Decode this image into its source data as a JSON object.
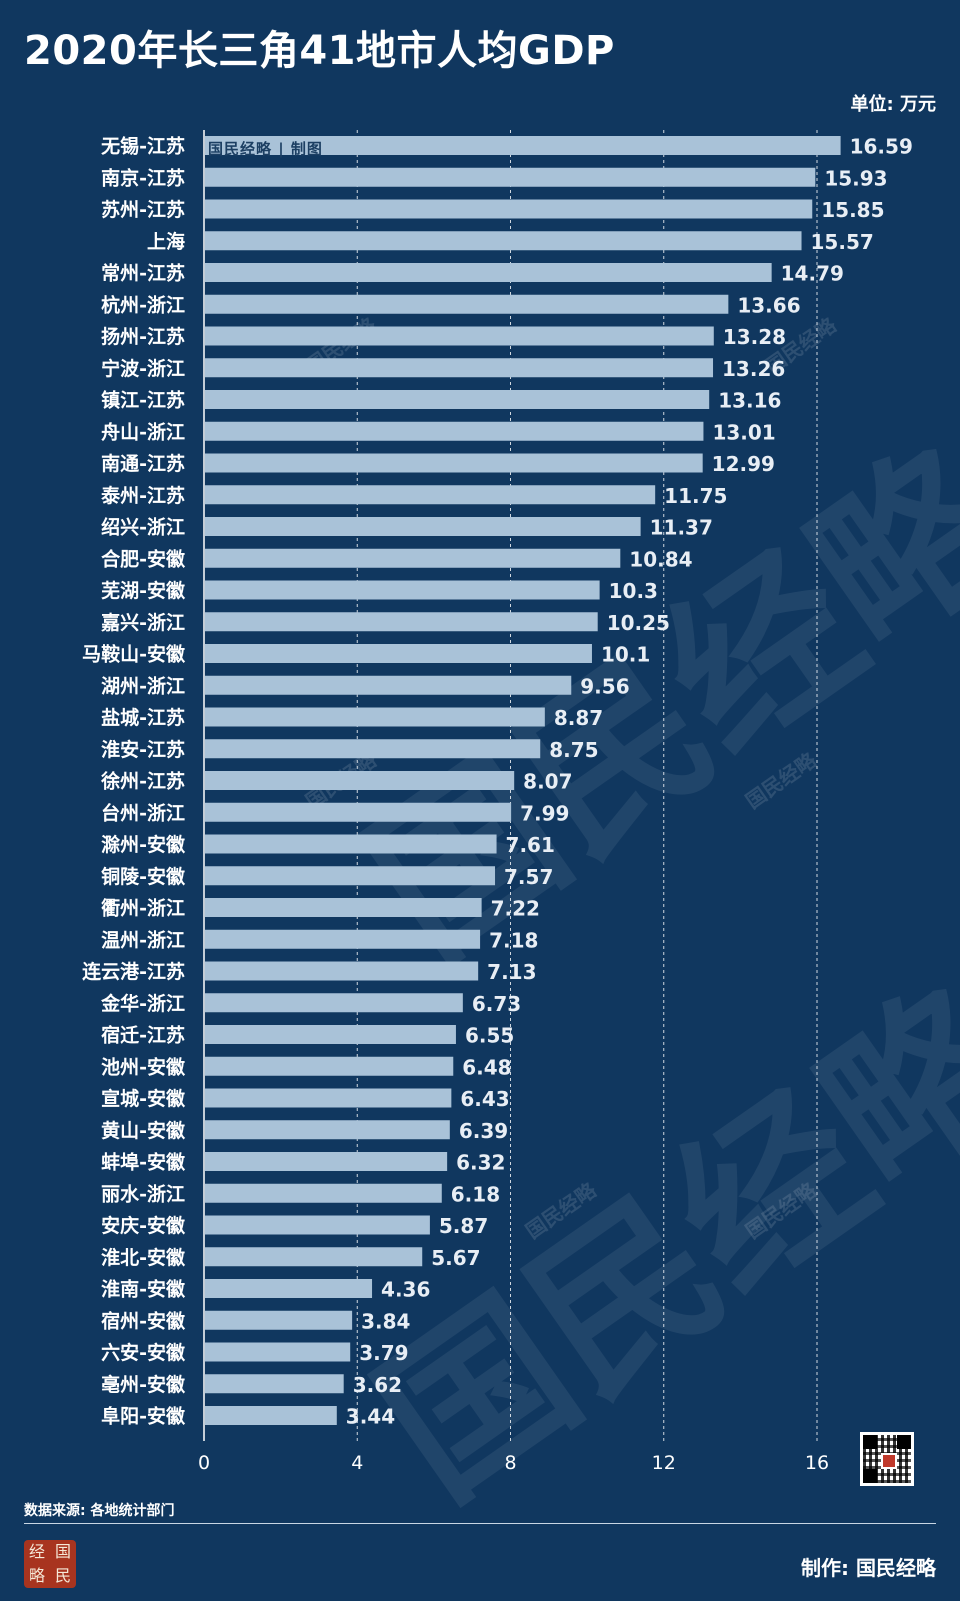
{
  "header": {
    "title": "2020年长三角41地市人均GDP",
    "unit": "单位: 万元"
  },
  "credit_line": "国民经略 | 制图",
  "footer": {
    "source": "数据来源: 各地统计部门",
    "maker": "制作:  国民经略",
    "logo_chars": [
      "经",
      "国",
      "略",
      "民"
    ]
  },
  "watermark_text": "国民经略",
  "colors": {
    "background": "#10375f",
    "bar": "#a9c2d8",
    "gridline": "#ffffff"
  },
  "chart_data": {
    "type": "bar",
    "orientation": "horizontal",
    "categories": [
      "无锡-江苏",
      "南京-江苏",
      "苏州-江苏",
      "上海",
      "常州-江苏",
      "杭州-浙江",
      "扬州-江苏",
      "宁波-浙江",
      "镇江-江苏",
      "舟山-浙江",
      "南通-江苏",
      "泰州-江苏",
      "绍兴-浙江",
      "合肥-安徽",
      "芜湖-安徽",
      "嘉兴-浙江",
      "马鞍山-安徽",
      "湖州-浙江",
      "盐城-江苏",
      "淮安-江苏",
      "徐州-江苏",
      "台州-浙江",
      "滁州-安徽",
      "铜陵-安徽",
      "衢州-浙江",
      "温州-浙江",
      "连云港-江苏",
      "金华-浙江",
      "宿迁-江苏",
      "池州-安徽",
      "宣城-安徽",
      "黄山-安徽",
      "蚌埠-安徽",
      "丽水-浙江",
      "安庆-安徽",
      "淮北-安徽",
      "淮南-安徽",
      "宿州-安徽",
      "六安-安徽",
      "亳州-安徽",
      "阜阳-安徽"
    ],
    "values": [
      16.59,
      15.93,
      15.85,
      15.57,
      14.79,
      13.66,
      13.28,
      13.26,
      13.16,
      13.01,
      12.99,
      11.75,
      11.37,
      10.84,
      10.3,
      10.25,
      10.1,
      9.56,
      8.87,
      8.75,
      8.07,
      7.99,
      7.61,
      7.57,
      7.22,
      7.18,
      7.13,
      6.73,
      6.55,
      6.48,
      6.43,
      6.39,
      6.32,
      6.18,
      5.87,
      5.67,
      4.36,
      3.84,
      3.79,
      3.62,
      3.44
    ],
    "xlim": [
      0,
      16
    ],
    "xticks": [
      0,
      4,
      8,
      12,
      16
    ],
    "grid": "vertical dashed"
  }
}
